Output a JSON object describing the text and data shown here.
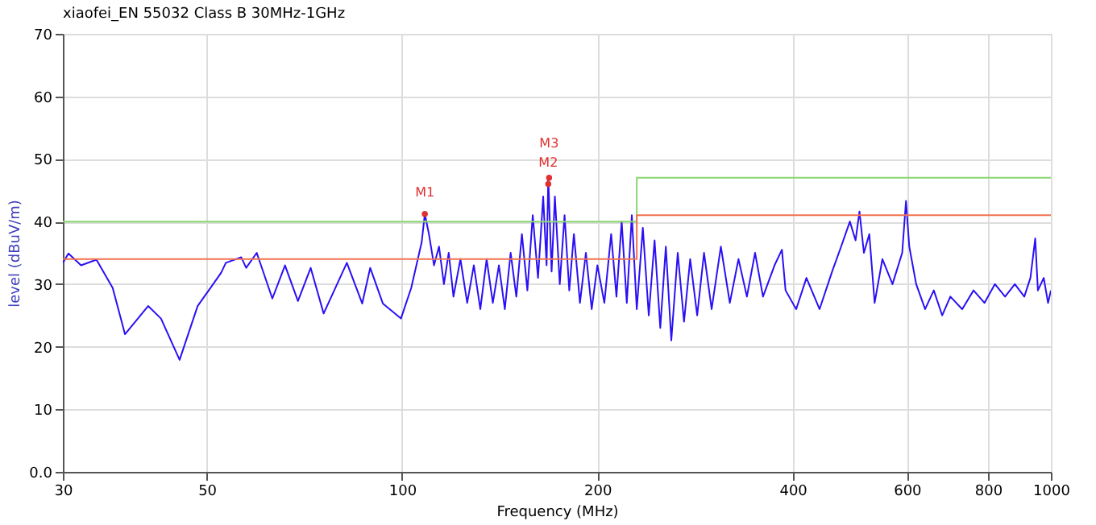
{
  "chart_data": {
    "type": "line",
    "title": "xiaofei_EN 55032 Class B 30MHz-1GHz",
    "xlabel": "Frequency (MHz)",
    "ylabel": "level (dBuV/m)",
    "log": "x",
    "grid": true,
    "marker": "none",
    "line_style": "solid",
    "xlim": [
      30,
      1000
    ],
    "xticks": [
      30,
      50,
      100,
      200,
      400,
      600,
      800,
      1000
    ],
    "ylim": [
      0,
      70
    ],
    "yticks": [
      {
        "value": 0,
        "label": "0.0"
      },
      10,
      20,
      30,
      40,
      50,
      60,
      70
    ],
    "series": [
      {
        "color": "#2a10f5",
        "x": [
          30.0,
          30.6,
          32.0,
          33.8,
          35.8,
          37.4,
          40.6,
          42.5,
          45.4,
          48.4,
          52.6,
          53.5,
          56.5,
          57.5,
          59.7,
          63.1,
          66.0,
          69.1,
          72.3,
          75.7,
          82.2,
          86.8,
          89.3,
          93.4,
          99.6,
          103.3,
          107.2,
          108.4,
          110,
          112,
          114,
          116,
          118,
          120,
          123,
          126,
          129,
          132,
          135,
          138,
          141,
          144,
          147,
          150,
          153,
          156,
          159,
          162,
          165,
          167,
          168,
          170,
          172,
          175,
          178,
          181,
          184,
          188,
          192,
          196,
          200,
          205,
          210,
          214,
          218,
          222,
          226,
          230,
          235,
          240,
          245,
          250,
          255,
          260,
          266,
          272,
          278,
          285,
          292,
          300,
          310,
          320,
          330,
          340,
          350,
          360,
          375,
          385,
          390,
          405,
          420,
          440,
          460,
          475,
          490,
          500,
          507,
          515,
          525,
          535,
          550,
          570,
          590,
          598,
          605,
          620,
          640,
          660,
          680,
          700,
          730,
          760,
          790,
          820,
          850,
          880,
          910,
          930,
          946,
          955,
          975,
          990,
          1000
        ],
        "values": [
          33.4,
          34.9,
          33.0,
          33.9,
          29.4,
          22.0,
          26.5,
          24.5,
          17.9,
          26.5,
          31.8,
          33.4,
          34.3,
          32.6,
          35.0,
          27.7,
          33.0,
          27.3,
          32.6,
          25.3,
          33.4,
          26.9,
          32.6,
          26.9,
          24.5,
          29.4,
          36.7,
          41.2,
          38,
          33,
          36,
          30,
          35,
          28,
          34,
          27,
          33,
          26,
          34,
          27,
          33,
          26,
          35,
          28,
          38,
          29,
          41,
          31,
          44,
          33,
          47.0,
          32,
          44,
          30,
          41,
          29,
          38,
          27,
          35,
          26,
          33,
          27,
          38,
          28,
          40,
          27,
          41,
          26,
          39,
          25,
          37,
          23,
          36,
          21,
          35,
          24,
          34,
          25,
          35,
          26,
          36,
          27,
          34,
          28,
          35,
          28,
          33,
          35.5,
          29,
          26,
          31,
          26,
          32,
          36,
          40,
          37,
          41.6,
          35,
          38,
          27,
          34,
          30,
          35,
          43.3,
          36,
          30,
          26,
          29,
          25,
          28,
          26,
          29,
          27,
          30,
          28,
          30,
          28,
          31,
          37.3,
          29,
          31,
          27,
          29
        ]
      },
      {
        "color": "#88d86e",
        "x": [
          30,
          230,
          230,
          1000
        ],
        "values": [
          40,
          40,
          47,
          47
        ]
      },
      {
        "color": "#f2714f",
        "x": [
          30,
          230,
          230,
          1000
        ],
        "values": [
          34,
          34,
          41,
          41
        ]
      }
    ],
    "annotations": [
      {
        "text": "M1",
        "x": 108.4,
        "y": 41.2
      },
      {
        "text": "M2",
        "x": 168,
        "y": 46.0
      },
      {
        "text": "M3",
        "x": 168.5,
        "y": 47.0
      }
    ]
  }
}
